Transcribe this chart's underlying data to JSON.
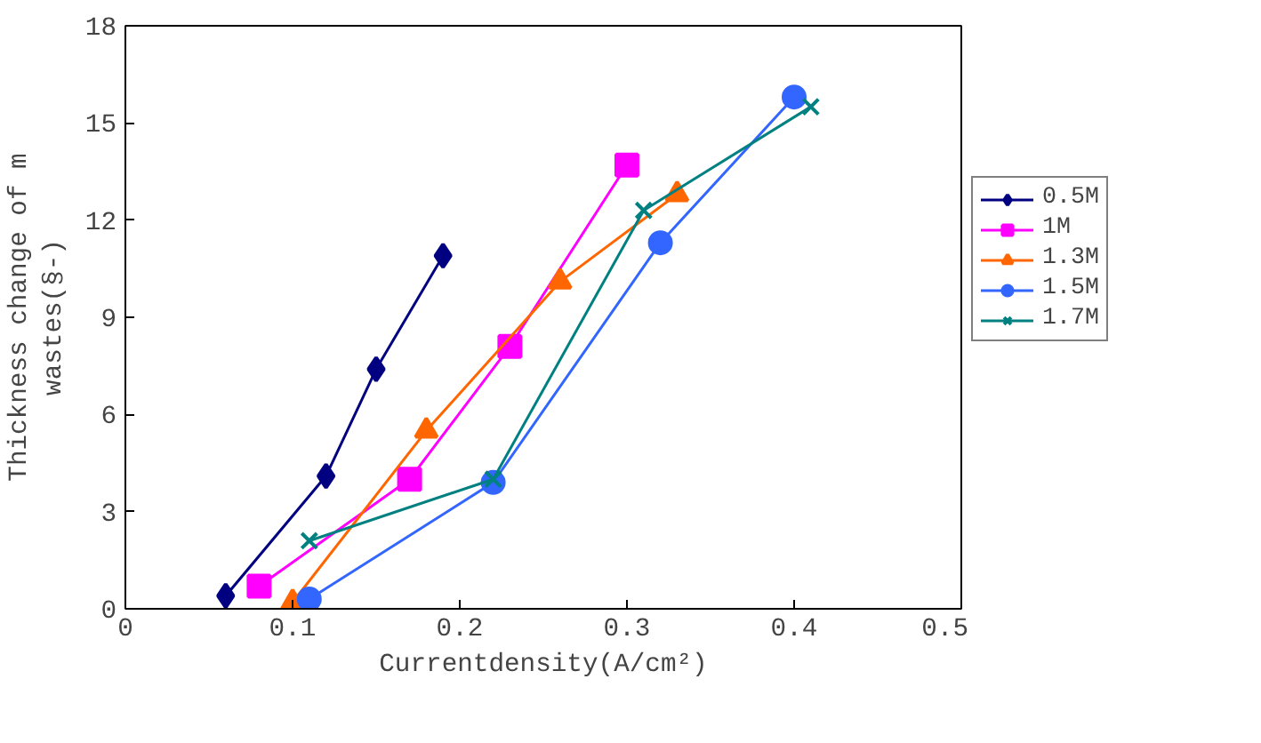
{
  "chart_data": {
    "type": "line",
    "xlabel": "Currentdensity(A/cm²)",
    "ylabel": "Thickness change of m\nwastes(§-)",
    "xlim": [
      0,
      0.5
    ],
    "xticks": [
      0,
      0.1,
      0.2,
      0.3,
      0.4,
      0.5
    ],
    "ylim": [
      0,
      18
    ],
    "yticks": [
      0,
      3,
      6,
      9,
      12,
      15,
      18
    ],
    "grid": false,
    "legend": "right",
    "line_style": "solid",
    "series": [
      {
        "name": "0.5M",
        "color": "#000080",
        "marker": "diamond",
        "x": [
          0.06,
          0.12,
          0.15,
          0.19
        ],
        "values": [
          0.4,
          4.1,
          7.4,
          10.9
        ]
      },
      {
        "name": "1M",
        "color": "#ff00ff",
        "marker": "square",
        "x": [
          0.08,
          0.17,
          0.23,
          0.3
        ],
        "values": [
          0.7,
          4.0,
          8.1,
          13.7
        ]
      },
      {
        "name": "1.3M",
        "color": "#ff6600",
        "marker": "triangle",
        "x": [
          0.1,
          0.18,
          0.26,
          0.33
        ],
        "values": [
          0.2,
          5.5,
          10.1,
          12.8
        ]
      },
      {
        "name": "1.5M",
        "color": "#3366ff",
        "marker": "circle",
        "x": [
          0.11,
          0.22,
          0.32,
          0.4
        ],
        "values": [
          0.3,
          3.9,
          11.3,
          15.8
        ]
      },
      {
        "name": "1.7M",
        "color": "#008080",
        "marker": "x",
        "x": [
          0.11,
          0.22,
          0.31,
          0.41
        ],
        "values": [
          2.1,
          4.0,
          12.3,
          15.5
        ]
      }
    ]
  }
}
